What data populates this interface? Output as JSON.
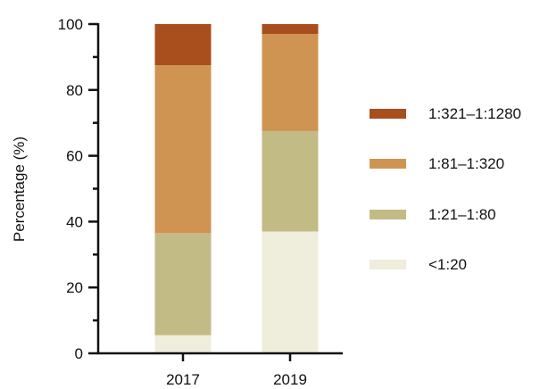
{
  "chart_data": {
    "type": "bar",
    "stacked": true,
    "categories": [
      "2017",
      "2019"
    ],
    "ylabel": "Percentage (%)",
    "xlabel": "",
    "ylim": [
      0,
      100
    ],
    "yticks": [
      "0",
      "20",
      "40",
      "60",
      "80",
      "100"
    ],
    "grid": false,
    "legend_position": "right",
    "series": [
      {
        "name": "<1:20",
        "color": "#efeddb",
        "values": [
          5.5,
          37
        ]
      },
      {
        "name": "1:21–1:80",
        "color": "#c3bb86",
        "values": [
          31,
          30.5
        ]
      },
      {
        "name": "1:81–1:320",
        "color": "#cf9452",
        "values": [
          51,
          29.5
        ]
      },
      {
        "name": "1:321–1:1280",
        "color": "#a94e1d",
        "values": [
          12.5,
          3
        ]
      }
    ],
    "legend_order": [
      "1:321–1:1280",
      "1:81–1:320",
      "1:21–1:80",
      "<1:20"
    ]
  }
}
